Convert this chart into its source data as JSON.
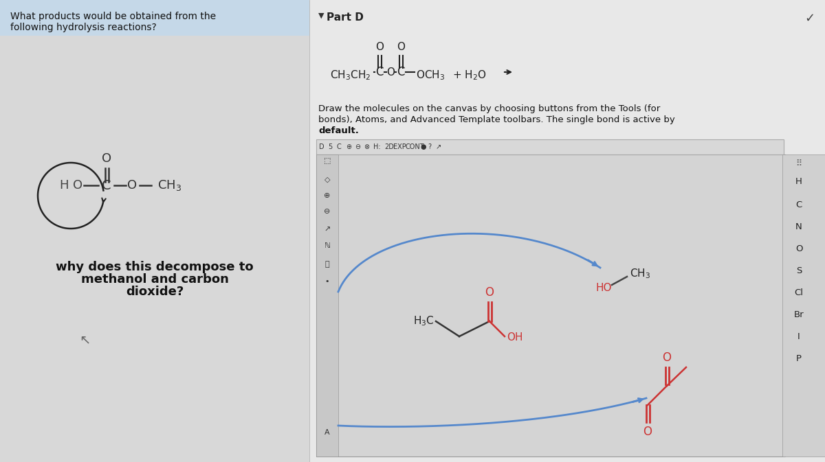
{
  "left_bg": "#d8d8d8",
  "right_bg": "#e8e8e8",
  "header_bg": "#c5d8e8",
  "canvas_bg": "#d8d8d8",
  "title_text1": "What products would be obtained from the",
  "title_text2": "following hydrolysis reactions?",
  "part_d": "Part D",
  "draw_inst1": "Draw the molecules on the canvas by choosing buttons from the Tools (for",
  "draw_inst2": "bonds), Atoms, and Advanced Template toolbars. The single bond is active by",
  "draw_inst3": "default.",
  "decompose1": "why does this decompose to",
  "decompose2": "methanol and carbon",
  "decompose3": "dioxide?",
  "atoms_list": [
    "H",
    "C",
    "N",
    "O",
    "S",
    "Cl",
    "Br",
    "I",
    "P"
  ],
  "mol_color": "#cc3333",
  "black": "#222222",
  "blue_arrow": "#5588cc"
}
